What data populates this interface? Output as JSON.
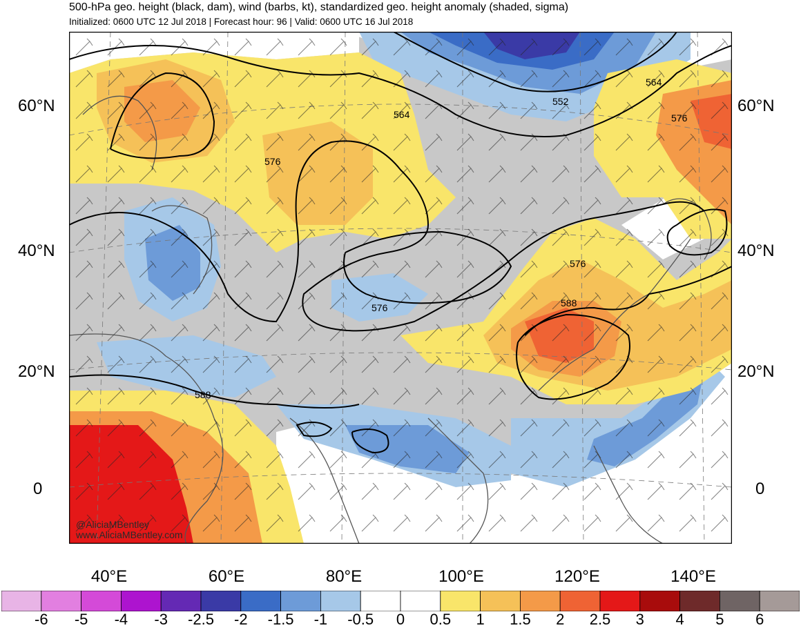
{
  "title": {
    "line1": "500-hPa geo. height (black, dam), wind (barbs, kt), standardized geo. height anomaly (shaded, sigma)",
    "line2": "Initialized: 0600 UTC 12 Jul 2018 | Forecast hour: 96 | Valid: 0600 UTC 16 Jul 2018"
  },
  "lat_labels": [
    "60°N",
    "40°N",
    "20°N",
    "0"
  ],
  "lon_labels": [
    "40°E",
    "60°E",
    "80°E",
    "100°E",
    "120°E",
    "140°E"
  ],
  "contour_labels": [
    "564",
    "552",
    "564",
    "576",
    "576",
    "576",
    "576",
    "588",
    "588"
  ],
  "credit": {
    "handle": "@AliciaMBentley",
    "website": "www.AliciaMBentley.com"
  },
  "colorbar": {
    "labels": [
      "-6",
      "-5",
      "-4",
      "-3",
      "-2.5",
      "-2",
      "-1.5",
      "-1",
      "-0.5",
      "0",
      "0.5",
      "1",
      "1.5",
      "2",
      "2.5",
      "3",
      "4",
      "5",
      "6"
    ],
    "colors": [
      "#e8b4e6",
      "#e27fe0",
      "#d44ad8",
      "#ad14cf",
      "#6429b4",
      "#3a3aa6",
      "#3a6cc6",
      "#6d9bd8",
      "#a6c8e8",
      "#ffffff",
      "#ffffff",
      "#f9e56a",
      "#f5c158",
      "#f49a48",
      "#ef6334",
      "#e41818",
      "#a80c0c",
      "#6e2a2a",
      "#6f6464",
      "#a59a98"
    ]
  },
  "colors": {
    "land_neutral": "#c8c8c8",
    "ocean": "#ffffff",
    "coastline": "#555555",
    "contour": "#000000"
  }
}
